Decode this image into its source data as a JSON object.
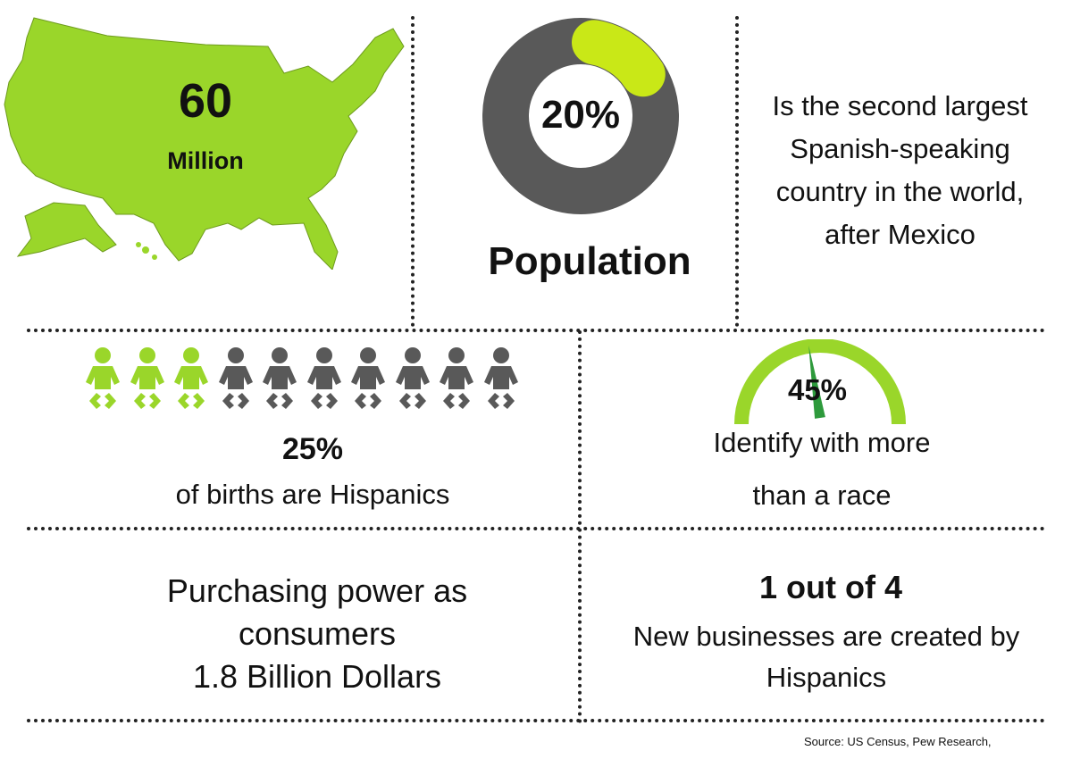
{
  "colors": {
    "green": "#9ad62a",
    "bright_green": "#c9e817",
    "gray": "#595959",
    "dark_green": "#2e9a3c"
  },
  "map": {
    "number": "60",
    "unit": "Million"
  },
  "population": {
    "percent": "20%",
    "label": "Population",
    "value": 20
  },
  "spanish": {
    "lines": [
      "Is the second largest",
      "Spanish-speaking",
      "country in the world,",
      "after Mexico"
    ]
  },
  "births": {
    "percent": "25%",
    "text": "of births are Hispanics",
    "icons_total": 10,
    "icons_highlighted": 3
  },
  "race": {
    "percent": "45%",
    "value": 45,
    "line1": "Identify with more",
    "line2": "than a race"
  },
  "power": {
    "lines": [
      "Purchasing power as",
      "consumers",
      "1.8 Billion Dollars"
    ]
  },
  "business": {
    "bold": "1 out of 4",
    "lines": [
      "New businesses are created by",
      "Hispanics"
    ]
  },
  "source": "Source:  US Census, Pew Research,"
}
